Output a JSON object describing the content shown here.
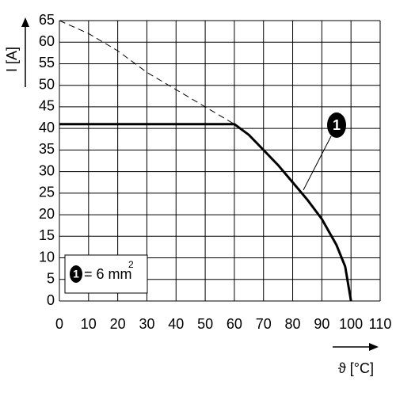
{
  "chart_data": {
    "type": "line",
    "y_label": "I [A]",
    "x_label": "ϑ [°C]",
    "xlim": [
      0,
      110
    ],
    "ylim": [
      0,
      65
    ],
    "xticks": [
      0,
      10,
      20,
      30,
      40,
      50,
      60,
      70,
      80,
      90,
      100,
      110
    ],
    "yticks": [
      0,
      5,
      10,
      15,
      20,
      25,
      30,
      35,
      40,
      45,
      50,
      55,
      60,
      65
    ],
    "grid": true,
    "series": [
      {
        "color": "#000000",
        "style": "solid",
        "x": [
          0,
          60,
          65,
          70,
          75,
          80,
          85,
          90,
          95,
          98,
          100
        ],
        "values": [
          41,
          41,
          38.5,
          35,
          31.5,
          27.5,
          23.5,
          19,
          13,
          8,
          0
        ]
      },
      {
        "color": "#000000",
        "style": "dashed",
        "x": [
          0,
          10,
          20,
          30,
          40,
          50,
          60
        ],
        "values": [
          65,
          62,
          58,
          53,
          49,
          45,
          41
        ]
      }
    ],
    "annotation": {
      "marker": "1"
    },
    "legend": {
      "marker": "1",
      "label": "= 6 mm",
      "sup": "2"
    }
  }
}
